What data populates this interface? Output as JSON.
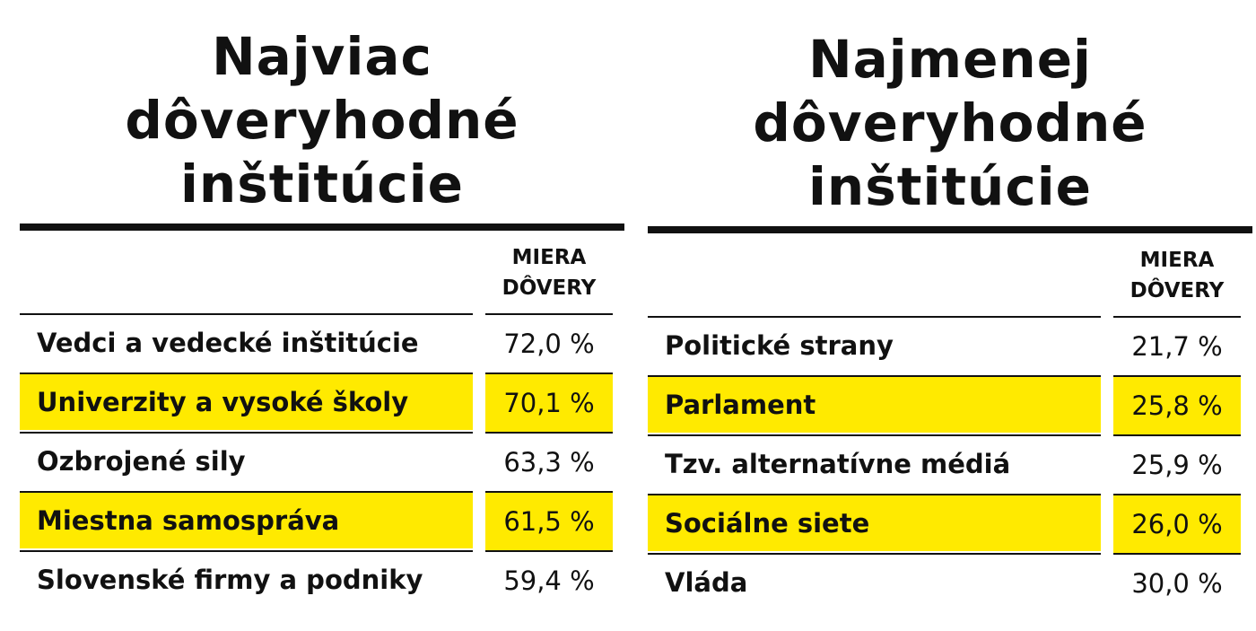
{
  "chart_data": [
    {
      "type": "table",
      "title": [
        "Najviac",
        "dôveryhodné",
        "inštitúcie"
      ],
      "column_header": [
        "MIERA",
        "DÔVERY"
      ],
      "rows": [
        {
          "label": "Vedci a vedecké inštitúcie",
          "value": "72,0 %",
          "highlight": false
        },
        {
          "label": "Univerzity a vysoké školy",
          "value": "70,1 %",
          "highlight": true
        },
        {
          "label": "Ozbrojené sily",
          "value": "63,3 %",
          "highlight": false
        },
        {
          "label": "Miestna samospráva",
          "value": "61,5 %",
          "highlight": true
        },
        {
          "label": "Slovenské firmy a podniky",
          "value": "59,4 %",
          "highlight": false
        }
      ]
    },
    {
      "type": "table",
      "title": [
        "Najmenej",
        "dôveryhodné",
        "inštitúcie"
      ],
      "column_header": [
        "MIERA",
        "DÔVERY"
      ],
      "rows": [
        {
          "label": "Politické strany",
          "value": "21,7 %",
          "highlight": false
        },
        {
          "label": "Parlament",
          "value": "25,8 %",
          "highlight": true
        },
        {
          "label": "Tzv. alternatívne médiá",
          "value": "25,9 %",
          "highlight": false
        },
        {
          "label": "Sociálne siete",
          "value": "26,0 %",
          "highlight": true
        },
        {
          "label": "Vláda",
          "value": "30,0 %",
          "highlight": false
        }
      ]
    }
  ],
  "colors": {
    "highlight": "#ffea00",
    "text": "#111111"
  }
}
